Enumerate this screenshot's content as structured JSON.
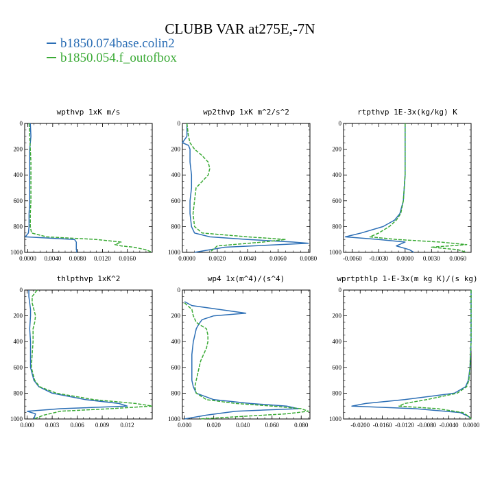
{
  "title": "CLUBB VAR at275E,-7N",
  "colors": {
    "series1": "#2b6eb5",
    "series2": "#3aaa35"
  },
  "legend": [
    {
      "label": "b1850.074base.colin2",
      "color": "#2b6eb5"
    },
    {
      "label": "b1850.054.f_outofbox",
      "color": "#3aaa35"
    }
  ],
  "chart_data": [
    {
      "type": "line",
      "title": "wpthvp  1xK m/s",
      "xlim": [
        -0.0005,
        0.02
      ],
      "ylim": [
        1000,
        0
      ],
      "x_ticks": [
        0.0,
        0.004,
        0.008,
        0.012,
        0.016
      ],
      "x_tick_labels": [
        "0.0000",
        "0.0040",
        "0.0080",
        "0.0120",
        "0.0160"
      ],
      "y_ticks": [
        0,
        200,
        400,
        600,
        800,
        1000
      ],
      "y_tick_labels": [
        "0",
        "200",
        "400",
        "600",
        "800",
        "1000"
      ],
      "series": [
        {
          "p": [
            0,
            100,
            200,
            300,
            400,
            500,
            600,
            700,
            800,
            850,
            880,
            900,
            920,
            950,
            980,
            990,
            1000
          ],
          "v": [
            0.0004,
            0.0005,
            0.0003,
            0.0003,
            0.0003,
            0.0003,
            0.0003,
            0.0002,
            0.0002,
            0.0001,
            -0.0004,
            0.0075,
            0.0078,
            0.0078,
            0.0078,
            0.0079,
            0.0078
          ]
        },
        {
          "p": [
            0,
            100,
            200,
            300,
            400,
            500,
            600,
            700,
            800,
            850,
            880,
            900,
            920,
            940,
            950,
            960,
            980,
            1000
          ],
          "v": [
            0.0002,
            0.0003,
            0.0004,
            0.0005,
            0.0005,
            0.0005,
            0.0005,
            0.0004,
            0.0004,
            0.0006,
            0.003,
            0.011,
            0.015,
            0.014,
            0.015,
            0.017,
            0.019,
            0.02
          ]
        }
      ]
    },
    {
      "type": "line",
      "title": "wp2thvp  1xK m^2/s^2",
      "xlim": [
        -0.0003,
        0.0081
      ],
      "ylim": [
        1000,
        0
      ],
      "x_ticks": [
        0.0,
        0.002,
        0.004,
        0.006,
        0.008
      ],
      "x_tick_labels": [
        "0.0000",
        "0.0020",
        "0.0040",
        "0.0060",
        "0.0080"
      ],
      "y_ticks": [
        0,
        200,
        400,
        600,
        800,
        1000
      ],
      "y_tick_labels": [
        "0",
        "200",
        "400",
        "600",
        "800",
        "1000"
      ],
      "series": [
        {
          "p": [
            0,
            100,
            150,
            170,
            200,
            300,
            400,
            500,
            600,
            700,
            800,
            850,
            880,
            900,
            920,
            930,
            960,
            1000
          ],
          "v": [
            0.0,
            0.0,
            -0.0003,
            0.0001,
            0.0002,
            0.0002,
            0.0003,
            0.0003,
            0.0002,
            0.0002,
            0.0003,
            0.0005,
            0.0015,
            0.004,
            0.007,
            0.008,
            0.0025,
            0.0005
          ]
        },
        {
          "p": [
            0,
            100,
            150,
            200,
            250,
            300,
            350,
            400,
            450,
            500,
            600,
            700,
            800,
            850,
            880,
            900,
            920,
            950,
            1000
          ],
          "v": [
            0.0,
            0.0001,
            0.0002,
            0.0005,
            0.001,
            0.0014,
            0.0015,
            0.0014,
            0.001,
            0.0006,
            0.0005,
            0.0004,
            0.0005,
            0.001,
            0.004,
            0.0065,
            0.005,
            0.002,
            0.0015
          ]
        }
      ]
    },
    {
      "type": "line",
      "title": "rtpthvp  1E-3x(kg/kg) K",
      "xlim": [
        -0.007,
        0.0075
      ],
      "ylim": [
        1000,
        0
      ],
      "x_ticks": [
        -0.006,
        -0.003,
        0.0,
        0.003,
        0.006
      ],
      "x_tick_labels": [
        "-0.0060",
        "-0.0030",
        "0.0000",
        "0.0030",
        "0.0060"
      ],
      "y_ticks": [
        0,
        200,
        400,
        600,
        800,
        1000
      ],
      "y_tick_labels": [
        "0",
        "200",
        "400",
        "600",
        "800",
        "1000"
      ],
      "series": [
        {
          "p": [
            0,
            200,
            400,
            600,
            700,
            750,
            800,
            850,
            880,
            900,
            920,
            950,
            980,
            1000
          ],
          "v": [
            0.0,
            0.0,
            0.0,
            -0.0002,
            -0.0006,
            -0.0012,
            -0.0025,
            -0.005,
            -0.0068,
            -0.003,
            0.0,
            -0.001,
            0.0005,
            0.001
          ]
        },
        {
          "p": [
            0,
            200,
            400,
            600,
            700,
            750,
            800,
            850,
            880,
            900,
            920,
            940,
            960,
            980,
            1000
          ],
          "v": [
            0.0,
            0.0,
            0.0,
            -0.0002,
            -0.0005,
            -0.001,
            -0.0018,
            -0.003,
            -0.004,
            -0.001,
            0.004,
            0.007,
            0.003,
            0.006,
            0.007
          ]
        }
      ]
    },
    {
      "type": "line",
      "title": "thlpthvp  1xK^2",
      "xlim": [
        -0.0003,
        0.015
      ],
      "ylim": [
        1000,
        0
      ],
      "x_ticks": [
        0.0,
        0.003,
        0.006,
        0.009,
        0.012
      ],
      "x_tick_labels": [
        "0.000",
        "0.003",
        "0.006",
        "0.009",
        "0.012"
      ],
      "y_ticks": [
        0,
        200,
        400,
        600,
        800,
        1000
      ],
      "y_tick_labels": [
        "0",
        "200",
        "400",
        "600",
        "800",
        "1000"
      ],
      "series": [
        {
          "p": [
            0,
            50,
            100,
            150,
            200,
            300,
            400,
            500,
            600,
            700,
            750,
            800,
            850,
            880,
            900,
            920,
            940,
            960,
            1000
          ],
          "v": [
            0.0002,
            0.0002,
            0.0003,
            0.0004,
            0.0004,
            0.0003,
            0.0004,
            0.0004,
            0.0004,
            0.0008,
            0.0014,
            0.003,
            0.007,
            0.011,
            0.012,
            0.004,
            0.0,
            0.001,
            0.0008
          ]
        },
        {
          "p": [
            0,
            50,
            100,
            150,
            200,
            250,
            300,
            400,
            500,
            600,
            700,
            750,
            800,
            850,
            880,
            900,
            920,
            940,
            970,
            1000
          ],
          "v": [
            0.0012,
            0.0006,
            0.0006,
            0.0008,
            0.001,
            0.0009,
            0.0007,
            0.0007,
            0.0006,
            0.0005,
            0.0009,
            0.0015,
            0.0035,
            0.008,
            0.013,
            0.015,
            0.01,
            0.004,
            0.002,
            0.0008
          ]
        }
      ]
    },
    {
      "type": "line",
      "title": "wp4  1x(m^4)/(s^4)",
      "xlim": [
        -0.0015,
        0.086
      ],
      "ylim": [
        1000,
        0
      ],
      "x_ticks": [
        0.0,
        0.02,
        0.04,
        0.06,
        0.08
      ],
      "x_tick_labels": [
        "0.000",
        "0.020",
        "0.040",
        "0.060",
        "0.080"
      ],
      "y_ticks": [
        0,
        200,
        400,
        600,
        800,
        1000
      ],
      "y_tick_labels": [
        "0",
        "200",
        "400",
        "600",
        "800",
        "1000"
      ],
      "series": [
        {
          "p": [
            90,
            120,
            160,
            180,
            200,
            230,
            260,
            300,
            350,
            400,
            500,
            600,
            700,
            750,
            800,
            850,
            880,
            900,
            920,
            940,
            970,
            990,
            1000
          ],
          "v": [
            0.0,
            0.005,
            0.03,
            0.042,
            0.02,
            0.012,
            0.01,
            0.008,
            0.007,
            0.006,
            0.005,
            0.005,
            0.005,
            0.006,
            0.008,
            0.02,
            0.045,
            0.07,
            0.078,
            0.035,
            0.015,
            0.005,
            0.0
          ]
        },
        {
          "p": [
            100,
            150,
            200,
            250,
            280,
            300,
            350,
            400,
            450,
            500,
            550,
            600,
            650,
            700,
            750,
            800,
            850,
            880,
            900,
            920,
            940,
            960,
            980,
            1000
          ],
          "v": [
            0.0,
            0.005,
            0.006,
            0.008,
            0.012,
            0.015,
            0.016,
            0.016,
            0.015,
            0.013,
            0.011,
            0.01,
            0.009,
            0.008,
            0.007,
            0.008,
            0.015,
            0.035,
            0.06,
            0.08,
            0.085,
            0.07,
            0.04,
            0.01
          ]
        }
      ]
    },
    {
      "type": "line",
      "title": "wprtpthlp  1-E-3x(m kg K)/(s kg)",
      "xlim": [
        -0.023,
        0.0
      ],
      "ylim": [
        1000,
        0
      ],
      "x_ticks": [
        -0.02,
        -0.016,
        -0.012,
        -0.008,
        -0.004,
        0.0
      ],
      "x_tick_labels": [
        "-0.0200",
        "-0.0160",
        "-0.0120",
        "-0.0080",
        "-0.0040",
        "0.0000"
      ],
      "y_ticks": [
        0,
        200,
        400,
        600,
        800,
        1000
      ],
      "y_tick_labels": [
        "0",
        "200",
        "400",
        "600",
        "800",
        "1000"
      ],
      "series": [
        {
          "p": [
            0,
            100,
            200,
            300,
            400,
            500,
            600,
            700,
            750,
            800,
            850,
            880,
            900,
            920,
            950,
            980,
            1000
          ],
          "v": [
            0.0,
            0.0,
            0.0,
            0.0,
            0.0,
            -0.0001,
            -0.0002,
            -0.0005,
            -0.001,
            -0.003,
            -0.012,
            -0.019,
            -0.0215,
            -0.01,
            -0.002,
            -0.0005,
            0.0
          ]
        },
        {
          "p": [
            0,
            100,
            200,
            300,
            400,
            500,
            600,
            700,
            750,
            800,
            850,
            880,
            900,
            920,
            950,
            980,
            1000
          ],
          "v": [
            0.0,
            0.0,
            0.0,
            0.0,
            0.0,
            -0.0001,
            -0.0002,
            -0.0004,
            -0.0008,
            -0.0025,
            -0.008,
            -0.012,
            -0.013,
            -0.006,
            -0.0015,
            -0.0004,
            0.0
          ]
        }
      ]
    }
  ]
}
